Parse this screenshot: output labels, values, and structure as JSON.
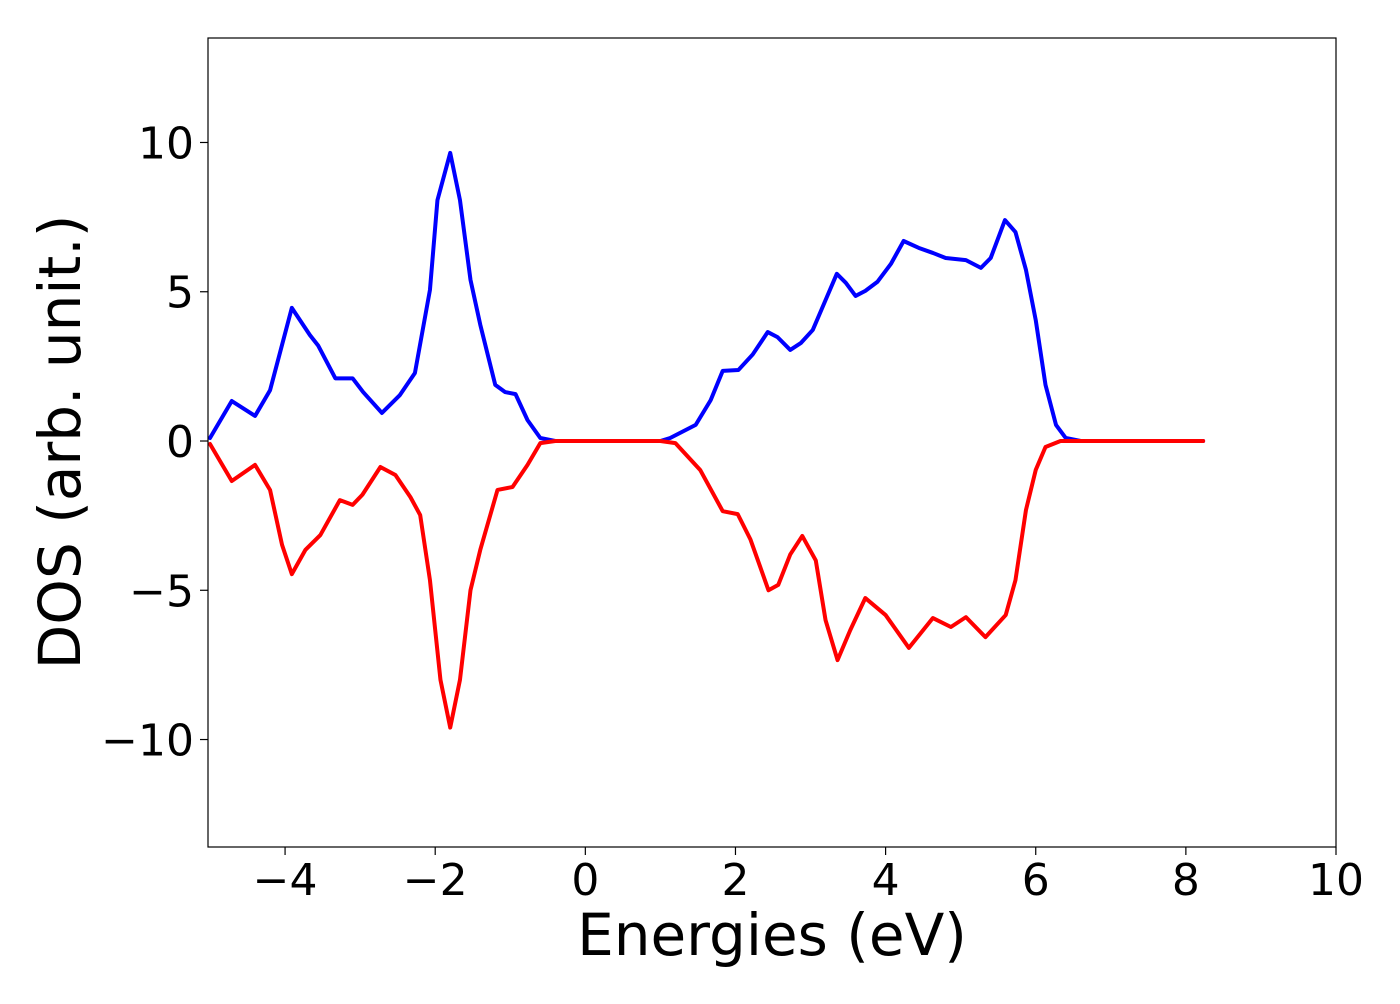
{
  "chart_data": {
    "type": "line",
    "xlabel": "Energies (eV)",
    "ylabel": "DOS (arb. unit.)",
    "xlim": [
      -5,
      10
    ],
    "ylim": [
      -13.6,
      13.5
    ],
    "xticks": [
      {
        "value": -4,
        "label": "−4"
      },
      {
        "value": -2,
        "label": "−2"
      },
      0,
      2,
      4,
      6,
      8,
      10
    ],
    "yticks": [
      {
        "value": -10,
        "label": "−10"
      },
      {
        "value": -5,
        "label": "−5"
      },
      0,
      5,
      10
    ],
    "series": [
      {
        "color": "#0000ff",
        "x": [
          -5,
          -4.71,
          -4.4,
          -4.2,
          -3.91,
          -3.67,
          -3.56,
          -3.33,
          -3.1,
          -2.96,
          -2.71,
          -2.47,
          -2.27,
          -2.07,
          -1.97,
          -1.8,
          -1.67,
          -1.53,
          -1.4,
          -1.2,
          -1.07,
          -0.93,
          -0.77,
          -0.6,
          -0.4,
          0,
          1,
          1.13,
          1.47,
          1.67,
          1.83,
          2.04,
          2.23,
          2.43,
          2.56,
          2.73,
          2.87,
          3.03,
          3.2,
          3.35,
          3.47,
          3.6,
          3.73,
          3.89,
          4.07,
          4.24,
          4.44,
          4.63,
          4.8,
          5.07,
          5.27,
          5.4,
          5.59,
          5.73,
          5.87,
          6.0,
          6.13,
          6.27,
          6.4,
          6.6,
          8.23
        ],
        "values": [
          0.1,
          1.34,
          0.84,
          1.7,
          4.46,
          3.55,
          3.2,
          2.1,
          2.1,
          1.64,
          0.94,
          1.54,
          2.28,
          5.06,
          8.07,
          9.65,
          8.07,
          5.4,
          3.9,
          1.88,
          1.64,
          1.57,
          0.7,
          0.1,
          0,
          0,
          0,
          0.1,
          0.54,
          1.37,
          2.35,
          2.38,
          2.9,
          3.65,
          3.48,
          3.05,
          3.28,
          3.72,
          4.72,
          5.6,
          5.3,
          4.86,
          5.03,
          5.33,
          5.93,
          6.7,
          6.47,
          6.3,
          6.13,
          6.06,
          5.8,
          6.13,
          7.4,
          7.0,
          5.73,
          4.05,
          1.88,
          0.54,
          0.1,
          0,
          0
        ]
      },
      {
        "color": "#ff0000",
        "x": [
          -5,
          -4.71,
          -4.4,
          -4.2,
          -4.04,
          -3.91,
          -3.73,
          -3.53,
          -3.27,
          -3.1,
          -2.97,
          -2.73,
          -2.53,
          -2.33,
          -2.2,
          -2.07,
          -1.93,
          -1.8,
          -1.67,
          -1.53,
          -1.4,
          -1.17,
          -0.97,
          -0.77,
          -0.6,
          -0.4,
          0,
          1,
          1.2,
          1.53,
          1.83,
          2.03,
          2.2,
          2.44,
          2.57,
          2.73,
          2.89,
          3.07,
          3.2,
          3.36,
          3.53,
          3.73,
          4.0,
          4.31,
          4.63,
          4.87,
          5.07,
          5.33,
          5.6,
          5.73,
          5.87,
          6.0,
          6.13,
          6.33,
          8.23
        ],
        "values": [
          -0.1,
          -1.34,
          -0.8,
          -1.64,
          -3.48,
          -4.46,
          -3.65,
          -3.15,
          -1.98,
          -2.14,
          -1.8,
          -0.87,
          -1.14,
          -1.88,
          -2.48,
          -4.66,
          -8.0,
          -9.6,
          -8.0,
          -5.0,
          -3.65,
          -1.64,
          -1.54,
          -0.8,
          -0.07,
          0,
          0,
          0,
          -0.07,
          -0.97,
          -2.35,
          -2.45,
          -3.3,
          -5.0,
          -4.82,
          -3.8,
          -3.18,
          -4.0,
          -6.0,
          -7.34,
          -6.33,
          -5.26,
          -5.83,
          -6.93,
          -5.93,
          -6.23,
          -5.9,
          -6.57,
          -5.83,
          -4.66,
          -2.31,
          -0.97,
          -0.2,
          0,
          0
        ]
      }
    ]
  }
}
